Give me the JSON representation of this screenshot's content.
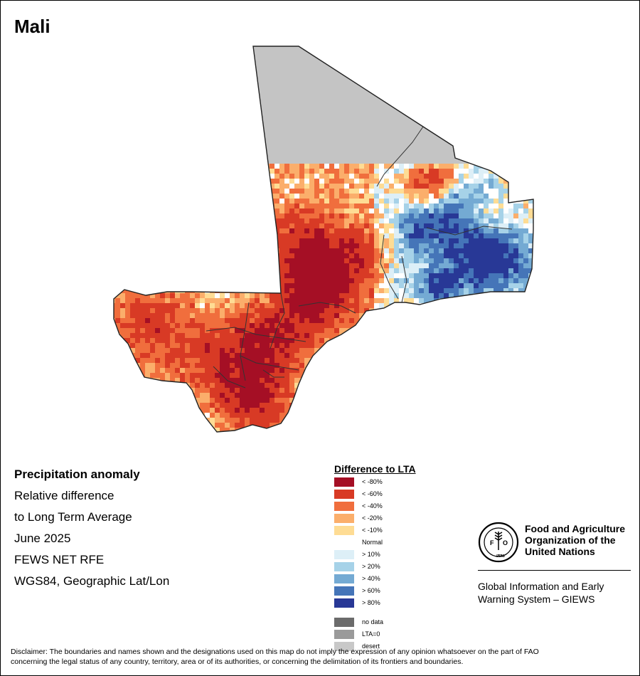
{
  "map": {
    "title": "Mali",
    "colors": {
      "desert": "#c4c4c4",
      "normal": "#ffffff",
      "lt80": "#a50f25",
      "lt60": "#d83a25",
      "lt40": "#f06e3d",
      "lt20": "#fbae6b",
      "lt10": "#fedc94",
      "gt10": "#ddeff7",
      "gt20": "#a6d2e8",
      "gt40": "#74aad3",
      "gt60": "#4575b8",
      "gt80": "#283896"
    }
  },
  "info": {
    "heading": "Precipitation anomaly",
    "line1": "Relative difference",
    "line2": "to Long Term Average",
    "period": "June 2025",
    "source": "FEWS NET RFE",
    "projection": "WGS84, Geographic Lat/Lon"
  },
  "legend": {
    "title": "Difference to LTA",
    "items": [
      {
        "label": "< -80%",
        "color": "#a50f25"
      },
      {
        "label": "< -60%",
        "color": "#d83a25"
      },
      {
        "label": "< -40%",
        "color": "#f06e3d"
      },
      {
        "label": "< -20%",
        "color": "#fbae6b"
      },
      {
        "label": "< -10%",
        "color": "#fedc94"
      },
      {
        "label": "Normal",
        "color": "#ffffff"
      },
      {
        "label": "> 10%",
        "color": "#ddeff7"
      },
      {
        "label": "> 20%",
        "color": "#a6d2e8"
      },
      {
        "label": "> 40%",
        "color": "#74aad3"
      },
      {
        "label": "> 60%",
        "color": "#4575b8"
      },
      {
        "label": "> 80%",
        "color": "#283896"
      }
    ],
    "extra": [
      {
        "label": "no data",
        "color": "#6b6b6b"
      },
      {
        "label": "LTA=0",
        "color": "#9a9a9a"
      },
      {
        "label": "desert",
        "color": "#c8c8c8"
      }
    ]
  },
  "fao": {
    "emblem_text": "FIAT PANIS",
    "name_line1": "Food and Agriculture",
    "name_line2": "Organization of the",
    "name_line3": "United Nations"
  },
  "giews": {
    "line1": "Global Information and Early",
    "line2": "Warning System – GIEWS"
  },
  "disclaimer": {
    "line1": "Disclaimer: The boundaries and names shown and the designations used on this map do not imply the expression of any opinion whatsoever on the part of FAO",
    "line2": "concerning the legal status of any country, territory, area or of its authorities, or concerning the delimitation of its frontiers and boundaries."
  }
}
